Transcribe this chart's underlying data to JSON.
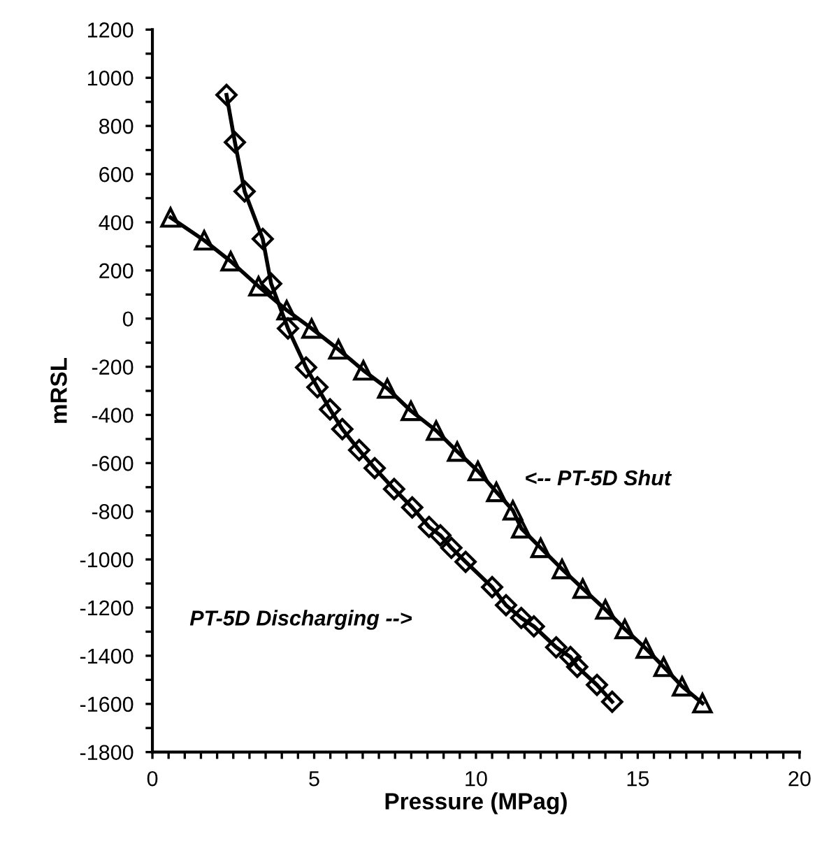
{
  "chart_data": {
    "type": "line",
    "xlabel": "Pressure (MPag)",
    "ylabel": "mRSL",
    "xlim": [
      0,
      20
    ],
    "xticks": [
      0,
      {
        "value": 0.5,
        "label": null
      },
      {
        "value": 1,
        "label": null
      },
      {
        "value": 1.5,
        "label": null
      },
      {
        "value": 2,
        "label": null
      },
      {
        "value": 2.5,
        "label": null
      },
      {
        "value": 3,
        "label": null
      },
      {
        "value": 3.5,
        "label": null
      },
      {
        "value": 4,
        "label": null
      },
      {
        "value": 4.5,
        "label": null
      },
      5,
      {
        "value": 5.5,
        "label": null
      },
      {
        "value": 6,
        "label": null
      },
      {
        "value": 6.5,
        "label": null
      },
      {
        "value": 7,
        "label": null
      },
      {
        "value": 7.5,
        "label": null
      },
      {
        "value": 8,
        "label": null
      },
      {
        "value": 8.5,
        "label": null
      },
      {
        "value": 9,
        "label": null
      },
      {
        "value": 9.5,
        "label": null
      },
      10,
      {
        "value": 10.5,
        "label": null
      },
      {
        "value": 11,
        "label": null
      },
      {
        "value": 11.5,
        "label": null
      },
      {
        "value": 12,
        "label": null
      },
      {
        "value": 12.5,
        "label": null
      },
      {
        "value": 13,
        "label": null
      },
      {
        "value": 13.5,
        "label": null
      },
      {
        "value": 14,
        "label": null
      },
      {
        "value": 14.5,
        "label": null
      },
      15,
      {
        "value": 15.5,
        "label": null
      },
      {
        "value": 16,
        "label": null
      },
      {
        "value": 16.5,
        "label": null
      },
      {
        "value": 17,
        "label": null
      },
      {
        "value": 17.5,
        "label": null
      },
      {
        "value": 18,
        "label": null
      },
      {
        "value": 18.5,
        "label": null
      },
      {
        "value": 19,
        "label": null
      },
      {
        "value": 19.5,
        "label": null
      },
      20
    ],
    "ylim": [
      -1800,
      1200
    ],
    "yticks": [
      -1800,
      {
        "value": -1700,
        "label": null
      },
      -1600,
      {
        "value": -1500,
        "label": null
      },
      -1400,
      {
        "value": -1300,
        "label": null
      },
      -1200,
      {
        "value": -1100,
        "label": null
      },
      -1000,
      {
        "value": -900,
        "label": null
      },
      -800,
      {
        "value": -700,
        "label": null
      },
      -600,
      {
        "value": -500,
        "label": null
      },
      -400,
      {
        "value": -300,
        "label": null
      },
      -200,
      {
        "value": -100,
        "label": null
      },
      0,
      {
        "value": 100,
        "label": null
      },
      200,
      {
        "value": 300,
        "label": null
      },
      400,
      {
        "value": 500,
        "label": null
      },
      600,
      {
        "value": 700,
        "label": null
      },
      800,
      {
        "value": 900,
        "label": null
      },
      1000,
      {
        "value": 1100,
        "label": null
      },
      1200
    ],
    "grid": false,
    "series": [
      {
        "color": "#000000",
        "marker": "triangle",
        "x": [
          0.56,
          1.6,
          2.42,
          3.28,
          4.15,
          4.92,
          5.75,
          6.52,
          7.26,
          7.99,
          8.77,
          9.42,
          10.06,
          10.63,
          11.14,
          11.4,
          12.0,
          12.66,
          13.3,
          14.0,
          14.6,
          15.25,
          15.8,
          16.37,
          17.0
        ],
        "values": [
          420,
          325,
          238,
          134,
          35,
          -41,
          -128,
          -215,
          -290,
          -383,
          -465,
          -552,
          -633,
          -720,
          -796,
          -871,
          -952,
          -1040,
          -1121,
          -1208,
          -1289,
          -1370,
          -1446,
          -1527,
          -1597
        ]
      },
      {
        "color": "#000000",
        "marker": "diamond",
        "x": [
          2.29,
          2.55,
          2.85,
          3.41,
          3.67,
          4.19,
          4.75,
          5.1,
          5.49,
          5.87,
          6.39,
          6.87,
          7.47,
          8.03,
          8.55,
          8.9,
          9.24,
          9.68,
          10.5,
          10.93,
          11.4,
          11.79,
          12.48,
          12.92,
          13.13,
          13.74,
          14.21
        ],
        "values": [
          929,
          732,
          528,
          331,
          145,
          -41,
          -203,
          -285,
          -377,
          -459,
          -546,
          -621,
          -708,
          -784,
          -865,
          -900,
          -952,
          -1010,
          -1115,
          -1190,
          -1243,
          -1278,
          -1365,
          -1405,
          -1446,
          -1521,
          -1591
        ]
      }
    ],
    "annotations": [
      "<-- PT-5D Shut",
      "PT-5D Discharging -->"
    ]
  }
}
